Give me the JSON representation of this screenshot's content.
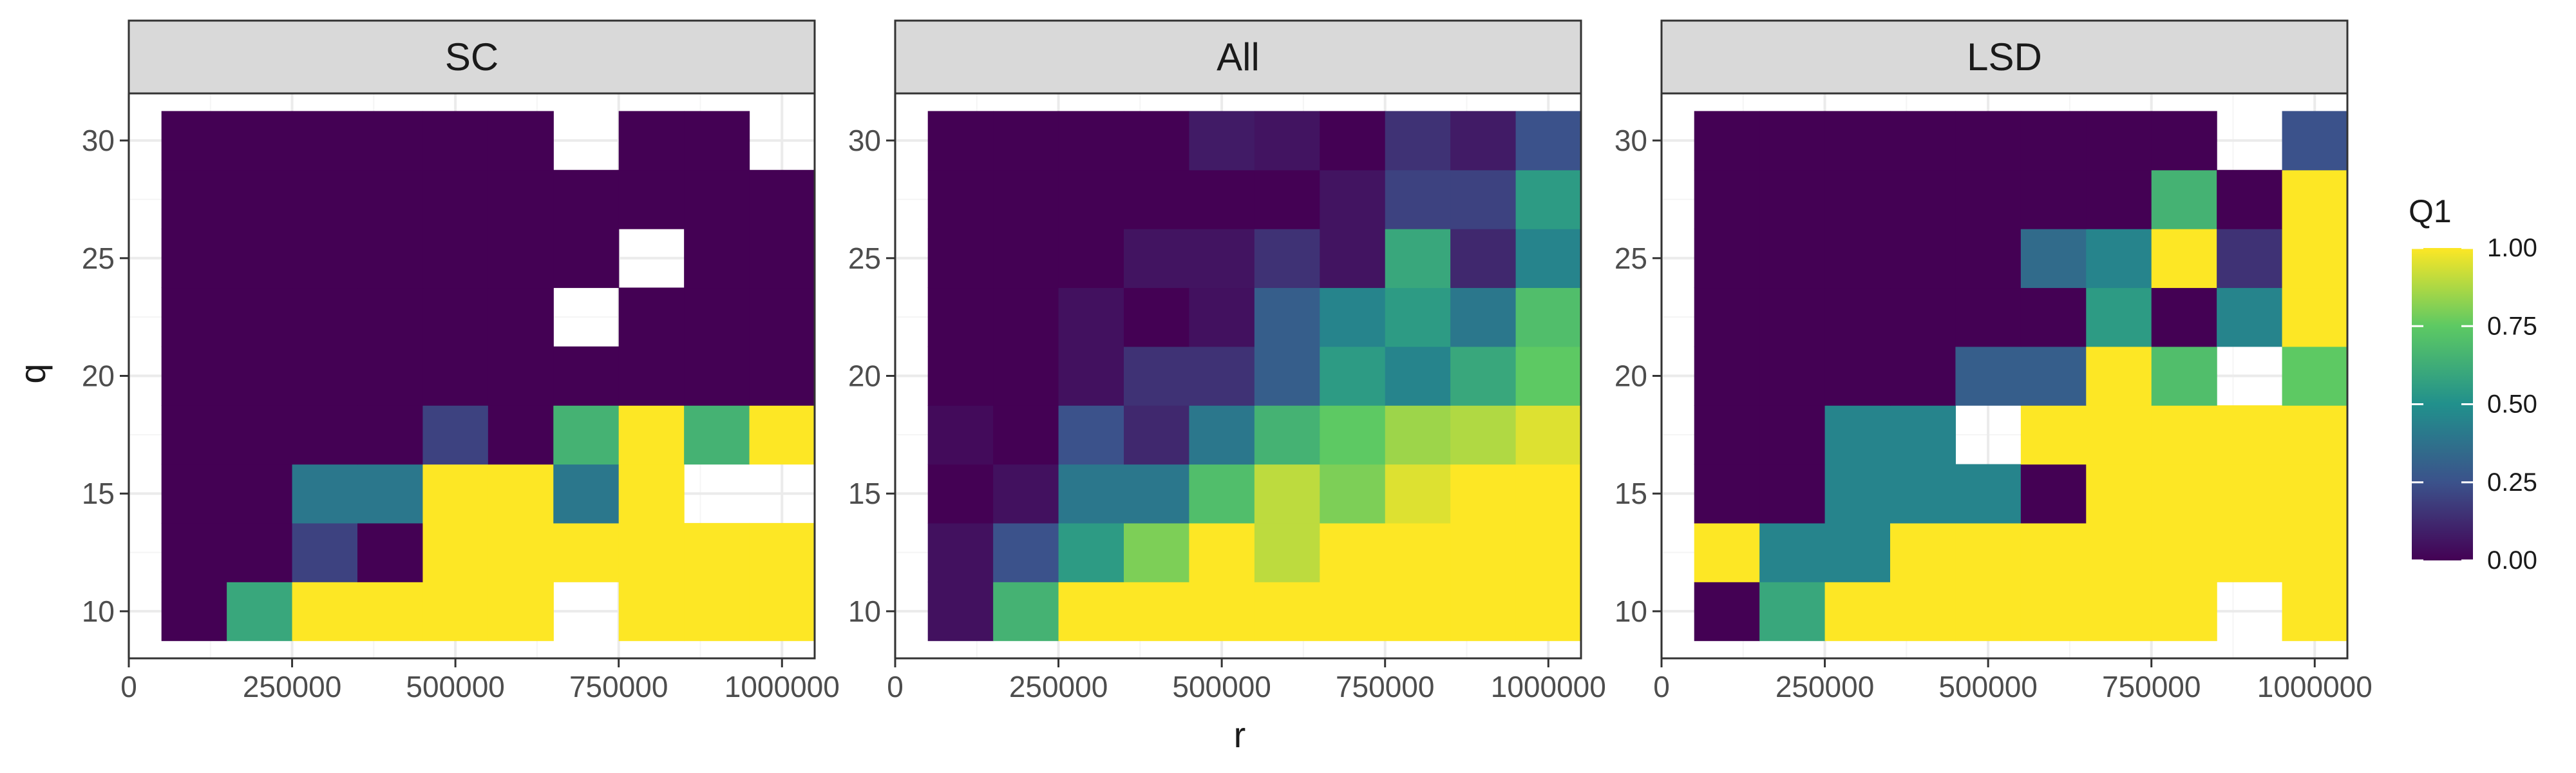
{
  "chart_data": {
    "type": "heatmap",
    "xlabel": "r",
    "ylabel": "q",
    "x": [
      100000,
      200000,
      300000,
      400000,
      500000,
      600000,
      700000,
      800000,
      900000,
      1000000
    ],
    "y": [
      10,
      12.5,
      15,
      17.5,
      20,
      22.5,
      25,
      27.5,
      30
    ],
    "xlim": [
      0,
      1050000
    ],
    "ylim": [
      8,
      32
    ],
    "x_ticks": [
      0,
      250000,
      500000,
      750000,
      1000000
    ],
    "x_tick_labels": [
      "0",
      "250000",
      "500000",
      "750000",
      "1000000"
    ],
    "y_ticks": [
      10,
      15,
      20,
      25,
      30
    ],
    "y_tick_labels": [
      "10",
      "15",
      "20",
      "25",
      "30"
    ],
    "grid": true,
    "legend": {
      "title": "Q1",
      "position": "right",
      "range": [
        0,
        1
      ],
      "ticks": [
        0,
        0.25,
        0.5,
        0.75,
        1
      ],
      "tick_labels": [
        "0.00",
        "0.25",
        "0.50",
        "0.75",
        "1.00"
      ],
      "colormap": [
        "#440154",
        "#3b528b",
        "#21908c",
        "#5dc963",
        "#fde725"
      ]
    },
    "panels": [
      {
        "name": "SC",
        "z": [
          [
            0,
            0.6,
            1,
            1,
            1,
            1,
            null,
            1,
            1,
            1
          ],
          [
            0,
            0,
            0.2,
            0,
            1,
            1,
            1,
            1,
            1,
            1
          ],
          [
            0,
            0,
            0.4,
            0.4,
            1,
            1,
            0.4,
            1,
            null,
            null
          ],
          [
            0,
            0,
            0,
            0,
            0.2,
            0,
            0.65,
            1,
            0.65,
            1
          ],
          [
            0,
            0,
            0,
            0,
            0,
            0,
            0,
            0,
            0,
            0
          ],
          [
            0,
            0,
            0,
            0,
            0,
            0,
            null,
            0,
            0,
            0
          ],
          [
            0,
            0,
            0,
            0,
            0,
            0,
            0,
            null,
            0,
            0
          ],
          [
            0,
            0,
            0,
            0,
            0,
            0,
            0,
            0,
            0,
            0
          ],
          [
            0,
            0,
            0,
            0,
            0,
            0,
            null,
            0,
            0,
            null
          ]
        ]
      },
      {
        "name": "All",
        "z": [
          [
            0.05,
            0.65,
            1,
            1,
            1,
            1,
            1,
            1,
            1,
            1
          ],
          [
            0.05,
            0.25,
            0.55,
            0.8,
            1,
            0.9,
            1,
            1,
            1,
            1
          ],
          [
            0,
            0.05,
            0.4,
            0.4,
            0.7,
            0.9,
            0.8,
            0.95,
            1,
            1
          ],
          [
            0.03,
            0,
            0.25,
            0.12,
            0.4,
            0.65,
            0.75,
            0.85,
            0.88,
            0.95
          ],
          [
            0,
            0,
            0.05,
            0.15,
            0.15,
            0.3,
            0.55,
            0.45,
            0.6,
            0.75
          ],
          [
            0,
            0,
            0.05,
            0,
            0.05,
            0.3,
            0.45,
            0.55,
            0.4,
            0.7
          ],
          [
            0,
            0,
            0,
            0.06,
            0.06,
            0.15,
            0.06,
            0.6,
            0.12,
            0.45
          ],
          [
            0,
            0,
            0,
            0,
            0,
            0,
            0.06,
            0.2,
            0.2,
            0.55
          ],
          [
            0,
            0,
            0,
            0,
            0.08,
            0.06,
            0,
            0.15,
            0.08,
            0.25
          ]
        ]
      },
      {
        "name": "LSD",
        "z": [
          [
            0,
            0.6,
            1,
            1,
            1,
            1,
            1,
            1,
            null,
            1
          ],
          [
            1,
            0.45,
            0.45,
            1,
            1,
            1,
            1,
            1,
            1,
            1
          ],
          [
            0,
            0,
            0.45,
            0.45,
            0.45,
            0,
            1,
            1,
            1,
            1
          ],
          [
            0,
            0,
            0.45,
            0.45,
            null,
            1,
            1,
            1,
            1,
            1
          ],
          [
            0,
            0,
            0,
            0,
            0.3,
            0.3,
            1,
            0.7,
            null,
            0.75
          ],
          [
            0,
            0,
            0,
            0,
            0,
            0,
            0.55,
            0,
            0.45,
            1
          ],
          [
            0,
            0,
            0,
            0,
            0,
            0.35,
            0.45,
            1,
            0.15,
            1
          ],
          [
            0,
            0,
            0,
            0,
            0,
            0,
            0,
            0.65,
            0,
            1
          ],
          [
            0,
            0,
            0,
            0,
            0,
            0,
            0,
            0,
            null,
            0.25
          ]
        ]
      }
    ]
  }
}
